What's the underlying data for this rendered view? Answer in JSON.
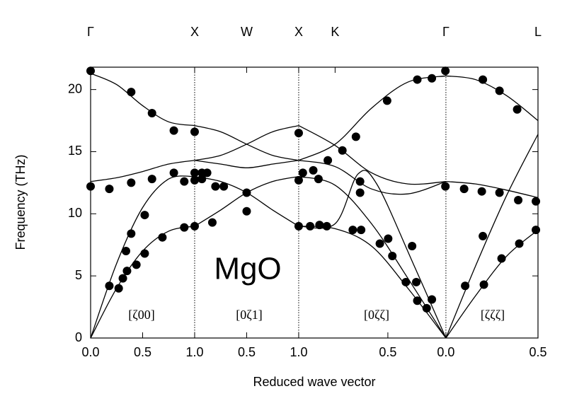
{
  "chart_data": {
    "type": "line",
    "x_label": "Reduced wave vector",
    "y_label": "Frequency (THz)",
    "annotations": [
      "MgO",
      "[ζ00]",
      "[0ζ1]",
      "[0ζζ]",
      "[ζζζ]"
    ],
    "xlim": [
      0,
      4.3
    ],
    "ylim": [
      0,
      21.8
    ],
    "yticks": [
      0,
      5,
      10,
      15,
      20
    ],
    "xticks": [
      {
        "value": 0,
        "label": "0.0"
      },
      {
        "value": 0.5,
        "label": "0.5"
      },
      {
        "value": 1,
        "label": "1.0"
      },
      {
        "value": 1.5,
        "label": "0.5"
      },
      {
        "value": 2,
        "label": "1.0"
      },
      {
        "value": 2.857,
        "label": "0.5"
      },
      {
        "value": 3.415,
        "label": "0.0"
      },
      {
        "value": 4.3,
        "label": "0.5"
      }
    ],
    "high_symmetry_points": [
      {
        "value": 0,
        "label": "Γ"
      },
      {
        "value": 1,
        "label": "X"
      },
      {
        "value": 1.5,
        "label": "W"
      },
      {
        "value": 2,
        "label": "X"
      },
      {
        "value": 2.35,
        "label": "K"
      },
      {
        "value": 3.415,
        "label": "Γ"
      },
      {
        "value": 4.3,
        "label": "L"
      }
    ],
    "dotted_lines_at": [
      1,
      2,
      3.415
    ],
    "line_color": "#000000",
    "series": [
      {
        "x": [
          0,
          0.25,
          0.5,
          0.75,
          1
        ],
        "values": [
          21.3,
          20.4,
          18.7,
          17.4,
          17.1
        ]
      },
      {
        "x": [
          0,
          0.25,
          0.5,
          0.75,
          1
        ],
        "values": [
          12.6,
          12.9,
          13.4,
          14.0,
          14.3
        ]
      },
      {
        "x": [
          0,
          0.25,
          0.5,
          0.75,
          1
        ],
        "values": [
          0,
          6.0,
          10.5,
          12.8,
          13.0
        ]
      },
      {
        "x": [
          0,
          0.25,
          0.5,
          0.75,
          1
        ],
        "values": [
          0,
          4.0,
          7.0,
          8.6,
          9.0
        ]
      },
      {
        "x": [
          1,
          1.25,
          1.5,
          1.75,
          2
        ],
        "values": [
          17.1,
          16.6,
          15.6,
          14.7,
          14.3
        ]
      },
      {
        "x": [
          1,
          1.25,
          1.5,
          1.75,
          2
        ],
        "values": [
          14.3,
          14.7,
          15.6,
          16.6,
          17.1
        ]
      },
      {
        "x": [
          1,
          1.25,
          1.5,
          1.75,
          2
        ],
        "values": [
          14.3,
          14.0,
          13.7,
          14.0,
          14.3
        ]
      },
      {
        "x": [
          1,
          1.25,
          1.5,
          1.75,
          2
        ],
        "values": [
          13.0,
          12.6,
          11.7,
          10.3,
          9.0
        ]
      },
      {
        "x": [
          1,
          1.25,
          1.5,
          1.75,
          2
        ],
        "values": [
          9.0,
          10.3,
          11.7,
          12.6,
          13.0
        ]
      },
      {
        "x": [
          2,
          2.35,
          2.7,
          3.05,
          3.415
        ],
        "values": [
          14.3,
          15.6,
          18.5,
          20.6,
          21.1
        ]
      },
      {
        "x": [
          2,
          2.35,
          2.7,
          3.05,
          3.415
        ],
        "values": [
          17.1,
          15.5,
          13.3,
          12.4,
          12.6
        ]
      },
      {
        "x": [
          2,
          2.35,
          2.7,
          3.05,
          3.415
        ],
        "values": [
          14.3,
          13.8,
          12.0,
          11.6,
          12.6
        ]
      },
      {
        "x": [
          2,
          2.35,
          2.7,
          3.05,
          3.415
        ],
        "values": [
          13.0,
          12.3,
          9.2,
          4.8,
          0
        ]
      },
      {
        "x": [
          2,
          2.35,
          2.7,
          3.05,
          3.415
        ],
        "values": [
          9.0,
          8.8,
          7.4,
          4.0,
          0
        ]
      },
      {
        "x": [
          2,
          2.35,
          2.57,
          2.75,
          3.1,
          3.415
        ],
        "values": [
          9.0,
          9.2,
          13.2,
          12.4,
          6.0,
          0
        ]
      },
      {
        "x": [
          3.415,
          3.7,
          4.0,
          4.3
        ],
        "values": [
          21.1,
          20.8,
          19.5,
          17.5
        ]
      },
      {
        "x": [
          3.415,
          3.7,
          4.0,
          4.3
        ],
        "values": [
          12.6,
          12.4,
          11.9,
          11.3
        ]
      },
      {
        "x": [
          3.415,
          3.7,
          4.0,
          4.3
        ],
        "values": [
          0,
          5.8,
          11.5,
          16.4
        ]
      },
      {
        "x": [
          3.415,
          3.7,
          4.0,
          4.3
        ],
        "values": [
          0,
          3.4,
          6.6,
          8.7
        ]
      }
    ],
    "measured": {
      "type": "scatter",
      "color": "#000000",
      "x": [
        0,
        0.39,
        0.59,
        0.8,
        1.0,
        2.0,
        0,
        0.18,
        0.39,
        0.59,
        0.8,
        0.9,
        1.0,
        1.0,
        1.07,
        1.12,
        1.07,
        1.2,
        1.28,
        1.5,
        1.5,
        1.17,
        0.9,
        1.0,
        0.69,
        0.52,
        0.44,
        0.35,
        0.31,
        0.27,
        0.18,
        0.34,
        0.39,
        0.52,
        2.0,
        2.04,
        2.14,
        2.19,
        2.0,
        2.11,
        2.2,
        2.27,
        2.28,
        2.42,
        2.55,
        2.59,
        2.59,
        2.52,
        2.6,
        2.78,
        2.86,
        2.9,
        3.03,
        3.13,
        3.14,
        3.23,
        3.28,
        3.09,
        2.85,
        3.14,
        3.28,
        3.41,
        3.41,
        3.59,
        3.76,
        3.93,
        4.11,
        4.28,
        3.6,
        3.78,
        3.95,
        4.12,
        4.28,
        3.77,
        3.77,
        3.93,
        4.1
      ],
      "values": [
        21.5,
        19.8,
        18.1,
        16.7,
        16.6,
        16.5,
        12.2,
        12.0,
        12.5,
        12.8,
        13.3,
        12.6,
        13.3,
        12.7,
        13.3,
        13.3,
        12.8,
        12.2,
        12.2,
        11.7,
        10.2,
        9.3,
        8.9,
        9.0,
        8.1,
        6.8,
        5.9,
        5.4,
        4.8,
        4.0,
        4.2,
        7.0,
        8.4,
        9.9,
        12.7,
        13.3,
        13.5,
        12.8,
        9.0,
        9.0,
        9.1,
        9.0,
        14.3,
        15.1,
        16.2,
        12.6,
        11.7,
        8.7,
        8.7,
        7.6,
        8.0,
        6.6,
        4.5,
        4.5,
        3.0,
        2.4,
        3.1,
        7.4,
        19.1,
        20.8,
        20.9,
        21.5,
        12.2,
        12.0,
        11.8,
        11.7,
        11.1,
        11.0,
        4.2,
        4.3,
        6.4,
        7.6,
        8.7,
        8.2,
        20.8,
        19.9,
        18.4
      ]
    }
  }
}
